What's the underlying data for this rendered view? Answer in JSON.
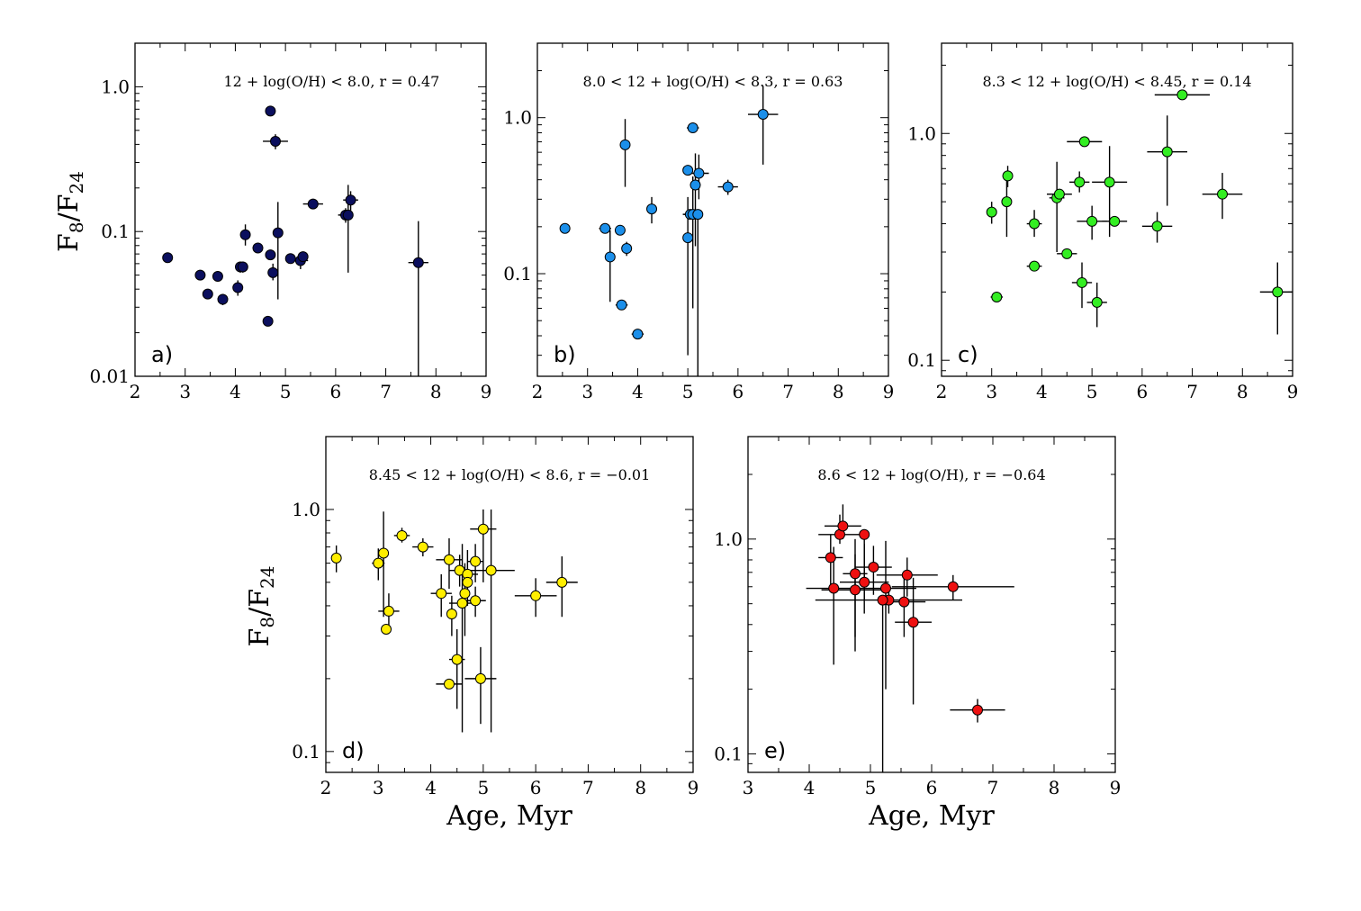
{
  "figure": {
    "ylabel": "F8/F24",
    "xlabel": "Age, Myr"
  },
  "chart_data": [
    {
      "type": "scatter",
      "id": "a",
      "panel_letter": "a)",
      "title": "12 + log(O/H) < 8.0,  r = 0.47",
      "color": "#0b0f5e",
      "xlim": [
        2,
        9
      ],
      "ylim": [
        0.01,
        2.0
      ],
      "yscale": "log",
      "xticks": [
        2,
        3,
        4,
        5,
        6,
        7,
        8,
        9
      ],
      "yticks": [
        0.01,
        0.1,
        1.0
      ],
      "ytick_labels": [
        "0.01",
        "0.1",
        "1.0"
      ],
      "show_ylabel": true,
      "show_xlabel": false,
      "points": [
        {
          "x": 2.65,
          "y": 0.066,
          "xerr": 0.0,
          "ylo": 0.066,
          "yhi": 0.066
        },
        {
          "x": 3.3,
          "y": 0.05,
          "xerr": 0.0,
          "ylo": 0.05,
          "yhi": 0.05
        },
        {
          "x": 3.45,
          "y": 0.037,
          "xerr": 0.0,
          "ylo": 0.037,
          "yhi": 0.037
        },
        {
          "x": 3.65,
          "y": 0.049,
          "xerr": 0.0,
          "ylo": 0.049,
          "yhi": 0.049
        },
        {
          "x": 3.75,
          "y": 0.034,
          "xerr": 0.0,
          "ylo": 0.031,
          "yhi": 0.037
        },
        {
          "x": 4.05,
          "y": 0.041,
          "xerr": 0.0,
          "ylo": 0.036,
          "yhi": 0.046
        },
        {
          "x": 4.1,
          "y": 0.057,
          "xerr": 0.0,
          "ylo": 0.052,
          "yhi": 0.062
        },
        {
          "x": 4.15,
          "y": 0.057,
          "xerr": 0.0,
          "ylo": 0.052,
          "yhi": 0.062
        },
        {
          "x": 4.2,
          "y": 0.095,
          "xerr": 0.0,
          "ylo": 0.08,
          "yhi": 0.112
        },
        {
          "x": 4.45,
          "y": 0.077,
          "xerr": 0.0,
          "ylo": 0.077,
          "yhi": 0.077
        },
        {
          "x": 4.65,
          "y": 0.024,
          "xerr": 0.1,
          "ylo": 0.024,
          "yhi": 0.024
        },
        {
          "x": 4.7,
          "y": 0.68,
          "xerr": 0.1,
          "ylo": 0.68,
          "yhi": 0.68
        },
        {
          "x": 4.7,
          "y": 0.069,
          "xerr": 0.0,
          "ylo": 0.069,
          "yhi": 0.069
        },
        {
          "x": 4.75,
          "y": 0.052,
          "xerr": 0.0,
          "ylo": 0.046,
          "yhi": 0.06
        },
        {
          "x": 4.8,
          "y": 0.42,
          "xerr": 0.25,
          "ylo": 0.37,
          "yhi": 0.47
        },
        {
          "x": 4.85,
          "y": 0.098,
          "xerr": 0.0,
          "ylo": 0.034,
          "yhi": 0.16
        },
        {
          "x": 5.1,
          "y": 0.065,
          "xerr": 0.1,
          "ylo": 0.065,
          "yhi": 0.065
        },
        {
          "x": 5.3,
          "y": 0.063,
          "xerr": 0.15,
          "ylo": 0.055,
          "yhi": 0.071
        },
        {
          "x": 5.35,
          "y": 0.067,
          "xerr": 0.1,
          "ylo": 0.067,
          "yhi": 0.067
        },
        {
          "x": 5.55,
          "y": 0.155,
          "xerr": 0.2,
          "ylo": 0.155,
          "yhi": 0.155
        },
        {
          "x": 6.2,
          "y": 0.13,
          "xerr": 0.15,
          "ylo": 0.115,
          "yhi": 0.145
        },
        {
          "x": 6.25,
          "y": 0.13,
          "xerr": 0.0,
          "ylo": 0.052,
          "yhi": 0.21
        },
        {
          "x": 6.3,
          "y": 0.165,
          "xerr": 0.15,
          "ylo": 0.14,
          "yhi": 0.19
        },
        {
          "x": 7.65,
          "y": 0.061,
          "xerr": 0.2,
          "ylo": 0.01,
          "yhi": 0.118
        }
      ]
    },
    {
      "type": "scatter",
      "id": "b",
      "panel_letter": "b)",
      "title": "8.0 < 12 + log(O/H) < 8.3,  r = 0.63",
      "color": "#1b8fea",
      "xlim": [
        2,
        9
      ],
      "ylim": [
        0.022,
        3.0
      ],
      "yscale": "log",
      "xticks": [
        2,
        3,
        4,
        5,
        6,
        7,
        8,
        9
      ],
      "yticks": [
        0.1,
        1.0
      ],
      "ytick_labels": [
        "0.1",
        "1.0"
      ],
      "show_ylabel": false,
      "show_xlabel": false,
      "points": [
        {
          "x": 2.55,
          "y": 0.195,
          "xerr": 0.0,
          "ylo": 0.195,
          "yhi": 0.195
        },
        {
          "x": 3.35,
          "y": 0.195,
          "xerr": 0.12,
          "ylo": 0.195,
          "yhi": 0.195
        },
        {
          "x": 3.45,
          "y": 0.128,
          "xerr": 0.0,
          "ylo": 0.066,
          "yhi": 0.19
        },
        {
          "x": 3.65,
          "y": 0.19,
          "xerr": 0.0,
          "ylo": 0.19,
          "yhi": 0.19
        },
        {
          "x": 3.68,
          "y": 0.063,
          "xerr": 0.12,
          "ylo": 0.063,
          "yhi": 0.063
        },
        {
          "x": 3.75,
          "y": 0.67,
          "xerr": 0.0,
          "ylo": 0.36,
          "yhi": 0.98
        },
        {
          "x": 3.78,
          "y": 0.145,
          "xerr": 0.0,
          "ylo": 0.13,
          "yhi": 0.16
        },
        {
          "x": 4.0,
          "y": 0.041,
          "xerr": 0.12,
          "ylo": 0.041,
          "yhi": 0.041
        },
        {
          "x": 4.28,
          "y": 0.26,
          "xerr": 0.0,
          "ylo": 0.21,
          "yhi": 0.31
        },
        {
          "x": 5.0,
          "y": 0.17,
          "xerr": 0.0,
          "ylo": 0.03,
          "yhi": 0.31
        },
        {
          "x": 5.0,
          "y": 0.46,
          "xerr": 0.1,
          "ylo": 0.46,
          "yhi": 0.46
        },
        {
          "x": 5.05,
          "y": 0.24,
          "xerr": 0.12,
          "ylo": 0.24,
          "yhi": 0.24
        },
        {
          "x": 5.1,
          "y": 0.24,
          "xerr": 0.2,
          "ylo": 0.06,
          "yhi": 0.42
        },
        {
          "x": 5.1,
          "y": 0.86,
          "xerr": 0.12,
          "ylo": 0.86,
          "yhi": 0.86
        },
        {
          "x": 5.15,
          "y": 0.37,
          "xerr": 0.0,
          "ylo": 0.15,
          "yhi": 0.59
        },
        {
          "x": 5.2,
          "y": 0.24,
          "xerr": 0.0,
          "ylo": 0.022,
          "yhi": 0.24
        },
        {
          "x": 5.22,
          "y": 0.44,
          "xerr": 0.2,
          "ylo": 0.3,
          "yhi": 0.58
        },
        {
          "x": 5.8,
          "y": 0.36,
          "xerr": 0.2,
          "ylo": 0.32,
          "yhi": 0.4
        },
        {
          "x": 6.5,
          "y": 1.05,
          "xerr": 0.3,
          "ylo": 0.5,
          "yhi": 1.6
        }
      ]
    },
    {
      "type": "scatter",
      "id": "c",
      "panel_letter": "c)",
      "title": "8.3 < 12 + log(O/H) < 8.45,  r = 0.14",
      "color": "#33ee22",
      "xlim": [
        2,
        9
      ],
      "ylim": [
        0.085,
        2.5
      ],
      "yscale": "log",
      "xticks": [
        2,
        3,
        4,
        5,
        6,
        7,
        8,
        9
      ],
      "yticks": [
        0.1,
        1.0
      ],
      "ytick_labels": [
        "0.1",
        "1.0"
      ],
      "show_ylabel": false,
      "show_xlabel": false,
      "points": [
        {
          "x": 3.0,
          "y": 0.45,
          "xerr": 0.0,
          "ylo": 0.4,
          "yhi": 0.5
        },
        {
          "x": 3.1,
          "y": 0.19,
          "xerr": 0.12,
          "ylo": 0.19,
          "yhi": 0.19
        },
        {
          "x": 3.3,
          "y": 0.5,
          "xerr": 0.0,
          "ylo": 0.35,
          "yhi": 0.65
        },
        {
          "x": 3.32,
          "y": 0.65,
          "xerr": 0.0,
          "ylo": 0.58,
          "yhi": 0.72
        },
        {
          "x": 3.85,
          "y": 0.4,
          "xerr": 0.15,
          "ylo": 0.35,
          "yhi": 0.46
        },
        {
          "x": 3.85,
          "y": 0.26,
          "xerr": 0.15,
          "ylo": 0.26,
          "yhi": 0.26
        },
        {
          "x": 4.3,
          "y": 0.52,
          "xerr": 0.15,
          "ylo": 0.3,
          "yhi": 0.75
        },
        {
          "x": 4.35,
          "y": 0.54,
          "xerr": 0.25,
          "ylo": 0.54,
          "yhi": 0.54
        },
        {
          "x": 4.5,
          "y": 0.295,
          "xerr": 0.2,
          "ylo": 0.28,
          "yhi": 0.31
        },
        {
          "x": 4.75,
          "y": 0.61,
          "xerr": 0.2,
          "ylo": 0.55,
          "yhi": 0.68
        },
        {
          "x": 4.8,
          "y": 0.22,
          "xerr": 0.2,
          "ylo": 0.17,
          "yhi": 0.27
        },
        {
          "x": 4.85,
          "y": 0.92,
          "xerr": 0.35,
          "ylo": 0.92,
          "yhi": 0.92
        },
        {
          "x": 5.0,
          "y": 0.41,
          "xerr": 0.3,
          "ylo": 0.34,
          "yhi": 0.48
        },
        {
          "x": 5.1,
          "y": 0.18,
          "xerr": 0.2,
          "ylo": 0.14,
          "yhi": 0.22
        },
        {
          "x": 5.35,
          "y": 0.61,
          "xerr": 0.35,
          "ylo": 0.35,
          "yhi": 0.88
        },
        {
          "x": 5.45,
          "y": 0.41,
          "xerr": 0.25,
          "ylo": 0.41,
          "yhi": 0.41
        },
        {
          "x": 6.3,
          "y": 0.39,
          "xerr": 0.3,
          "ylo": 0.33,
          "yhi": 0.45
        },
        {
          "x": 6.5,
          "y": 0.83,
          "xerr": 0.4,
          "ylo": 0.48,
          "yhi": 1.2
        },
        {
          "x": 6.8,
          "y": 1.48,
          "xerr": 0.55,
          "ylo": 1.48,
          "yhi": 1.48
        },
        {
          "x": 7.6,
          "y": 0.54,
          "xerr": 0.4,
          "ylo": 0.42,
          "yhi": 0.67
        },
        {
          "x": 8.7,
          "y": 0.2,
          "xerr": 0.35,
          "ylo": 0.13,
          "yhi": 0.27
        }
      ]
    },
    {
      "type": "scatter",
      "id": "d",
      "panel_letter": "d)",
      "title": "8.45 < 12 + log(O/H) < 8.6,  r = −0.01",
      "color": "#ffee00",
      "xlim": [
        2,
        9
      ],
      "ylim": [
        0.082,
        2.0
      ],
      "yscale": "log",
      "xticks": [
        2,
        3,
        4,
        5,
        6,
        7,
        8,
        9
      ],
      "yticks": [
        0.1,
        1.0
      ],
      "ytick_labels": [
        "0.1",
        "1.0"
      ],
      "show_ylabel": true,
      "show_xlabel": true,
      "points": [
        {
          "x": 2.2,
          "y": 0.63,
          "xerr": 0.0,
          "ylo": 0.55,
          "yhi": 0.71
        },
        {
          "x": 3.0,
          "y": 0.6,
          "xerr": 0.12,
          "ylo": 0.51,
          "yhi": 0.69
        },
        {
          "x": 3.1,
          "y": 0.66,
          "xerr": 0.0,
          "ylo": 0.36,
          "yhi": 0.98
        },
        {
          "x": 3.15,
          "y": 0.32,
          "xerr": 0.0,
          "ylo": 0.32,
          "yhi": 0.32
        },
        {
          "x": 3.2,
          "y": 0.38,
          "xerr": 0.2,
          "ylo": 0.32,
          "yhi": 0.45
        },
        {
          "x": 3.45,
          "y": 0.78,
          "xerr": 0.15,
          "ylo": 0.73,
          "yhi": 0.84
        },
        {
          "x": 3.85,
          "y": 0.7,
          "xerr": 0.2,
          "ylo": 0.64,
          "yhi": 0.76
        },
        {
          "x": 4.2,
          "y": 0.45,
          "xerr": 0.2,
          "ylo": 0.36,
          "yhi": 0.54
        },
        {
          "x": 4.35,
          "y": 0.62,
          "xerr": 0.25,
          "ylo": 0.47,
          "yhi": 0.76
        },
        {
          "x": 4.35,
          "y": 0.19,
          "xerr": 0.25,
          "ylo": 0.19,
          "yhi": 0.19
        },
        {
          "x": 4.4,
          "y": 0.37,
          "xerr": 0.0,
          "ylo": 0.3,
          "yhi": 0.44
        },
        {
          "x": 4.5,
          "y": 0.24,
          "xerr": 0.15,
          "ylo": 0.15,
          "yhi": 0.32
        },
        {
          "x": 4.55,
          "y": 0.56,
          "xerr": 0.2,
          "ylo": 0.48,
          "yhi": 0.65
        },
        {
          "x": 4.6,
          "y": 0.41,
          "xerr": 0.25,
          "ylo": 0.12,
          "yhi": 0.72
        },
        {
          "x": 4.65,
          "y": 0.45,
          "xerr": 0.0,
          "ylo": 0.3,
          "yhi": 0.6
        },
        {
          "x": 4.7,
          "y": 0.54,
          "xerr": 0.2,
          "ylo": 0.4,
          "yhi": 0.68
        },
        {
          "x": 4.7,
          "y": 0.5,
          "xerr": 0.0,
          "ylo": 0.45,
          "yhi": 0.55
        },
        {
          "x": 4.85,
          "y": 0.61,
          "xerr": 0.15,
          "ylo": 0.5,
          "yhi": 0.72
        },
        {
          "x": 4.85,
          "y": 0.42,
          "xerr": 0.2,
          "ylo": 0.36,
          "yhi": 0.48
        },
        {
          "x": 4.95,
          "y": 0.2,
          "xerr": 0.3,
          "ylo": 0.13,
          "yhi": 0.27
        },
        {
          "x": 5.0,
          "y": 0.83,
          "xerr": 0.25,
          "ylo": 0.5,
          "yhi": 1.0
        },
        {
          "x": 5.15,
          "y": 0.56,
          "xerr": 0.45,
          "ylo": 0.12,
          "yhi": 1.0
        },
        {
          "x": 6.0,
          "y": 0.44,
          "xerr": 0.4,
          "ylo": 0.36,
          "yhi": 0.52
        },
        {
          "x": 6.5,
          "y": 0.5,
          "xerr": 0.3,
          "ylo": 0.36,
          "yhi": 0.64
        }
      ]
    },
    {
      "type": "scatter",
      "id": "e",
      "panel_letter": "e)",
      "title": "8.6 < 12 + log(O/H),  r = −0.64",
      "color": "#ee1111",
      "xlim": [
        3,
        9
      ],
      "ylim": [
        0.082,
        3.0
      ],
      "yscale": "log",
      "xticks": [
        3,
        4,
        5,
        6,
        7,
        8,
        9
      ],
      "yticks": [
        0.1,
        1.0
      ],
      "ytick_labels": [
        "0.1",
        "1.0"
      ],
      "show_ylabel": false,
      "show_xlabel": true,
      "points": [
        {
          "x": 4.35,
          "y": 0.82,
          "xerr": 0.2,
          "ylo": 0.6,
          "yhi": 1.05
        },
        {
          "x": 4.4,
          "y": 0.59,
          "xerr": 0.45,
          "ylo": 0.26,
          "yhi": 0.92
        },
        {
          "x": 4.5,
          "y": 1.05,
          "xerr": 0.35,
          "ylo": 0.95,
          "yhi": 1.3
        },
        {
          "x": 4.55,
          "y": 1.15,
          "xerr": 0.3,
          "ylo": 1.0,
          "yhi": 1.45
        },
        {
          "x": 4.75,
          "y": 0.69,
          "xerr": 0.2,
          "ylo": 0.35,
          "yhi": 1.0
        },
        {
          "x": 4.75,
          "y": 0.58,
          "xerr": 0.55,
          "ylo": 0.3,
          "yhi": 0.85
        },
        {
          "x": 4.9,
          "y": 0.63,
          "xerr": 0.4,
          "ylo": 0.45,
          "yhi": 0.95
        },
        {
          "x": 4.9,
          "y": 1.05,
          "xerr": 0.0,
          "ylo": 0.52,
          "yhi": 1.05
        },
        {
          "x": 5.05,
          "y": 0.74,
          "xerr": 0.3,
          "ylo": 0.55,
          "yhi": 0.93
        },
        {
          "x": 5.25,
          "y": 0.59,
          "xerr": 0.5,
          "ylo": 0.2,
          "yhi": 0.98
        },
        {
          "x": 5.3,
          "y": 0.52,
          "xerr": 1.2,
          "ylo": 0.45,
          "yhi": 0.6
        },
        {
          "x": 5.2,
          "y": 0.52,
          "xerr": 0.0,
          "ylo": 0.08,
          "yhi": 0.52
        },
        {
          "x": 5.55,
          "y": 0.51,
          "xerr": 0.35,
          "ylo": 0.35,
          "yhi": 0.68
        },
        {
          "x": 5.6,
          "y": 0.68,
          "xerr": 0.5,
          "ylo": 0.54,
          "yhi": 0.82
        },
        {
          "x": 5.7,
          "y": 0.41,
          "xerr": 0.3,
          "ylo": 0.17,
          "yhi": 0.66
        },
        {
          "x": 6.35,
          "y": 0.6,
          "xerr": 1.0,
          "ylo": 0.52,
          "yhi": 0.68
        },
        {
          "x": 6.75,
          "y": 0.16,
          "xerr": 0.45,
          "ylo": 0.14,
          "yhi": 0.18
        }
      ]
    }
  ]
}
